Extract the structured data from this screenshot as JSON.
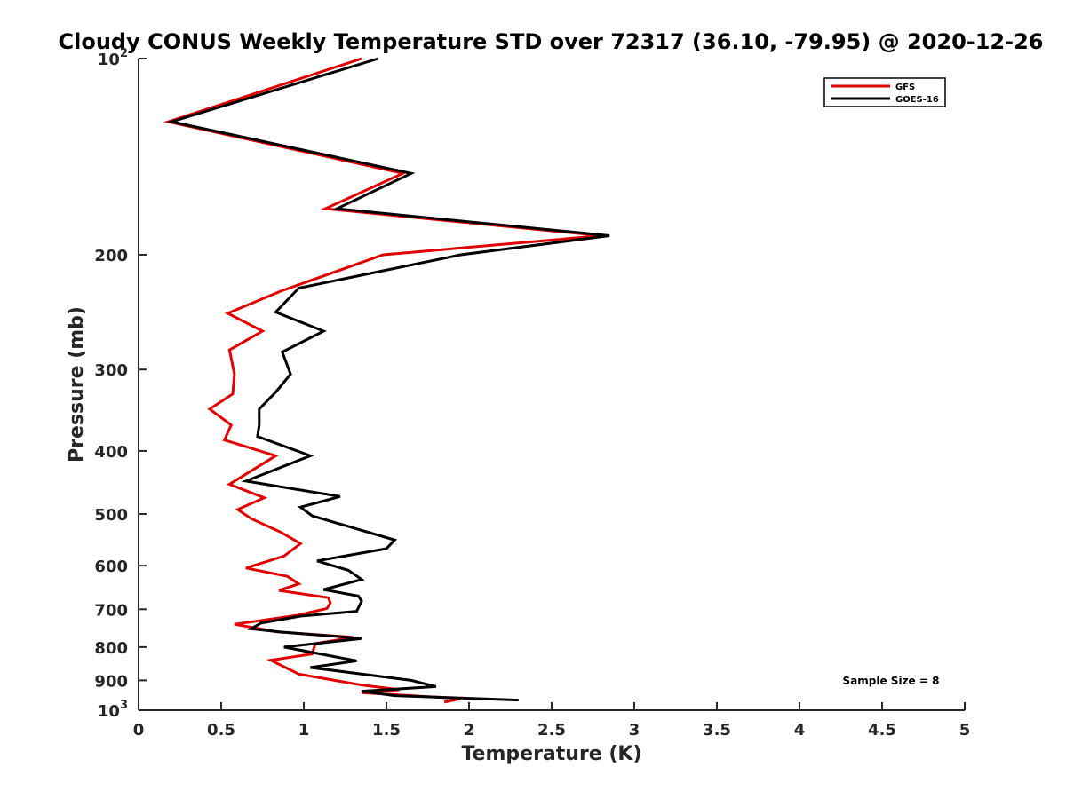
{
  "chart_data": {
    "type": "line",
    "title": "Cloudy CONUS Weekly Temperature STD over 72317 (36.10, -79.95) @ 2020-12-26",
    "xlabel": "Temperature (K)",
    "ylabel": "Pressure (mb)",
    "xlim": [
      0,
      5
    ],
    "ylim": [
      100,
      1000
    ],
    "y_scale": "log",
    "y_reversed": true,
    "grid": false,
    "legend_position": "top-right",
    "x_ticks": [
      "0",
      "0.5",
      "1",
      "1.5",
      "2",
      "2.5",
      "3",
      "3.5",
      "4",
      "4.5",
      "5"
    ],
    "x_tick_values": [
      0,
      0.5,
      1,
      1.5,
      2,
      2.5,
      3,
      3.5,
      4,
      4.5,
      5
    ],
    "y_ticks": [
      {
        "value": 100,
        "base": "10",
        "exp": "2"
      },
      {
        "value": 200,
        "label": "200"
      },
      {
        "value": 300,
        "label": "300"
      },
      {
        "value": 400,
        "label": "400"
      },
      {
        "value": 500,
        "label": "500"
      },
      {
        "value": 600,
        "label": "600"
      },
      {
        "value": 700,
        "label": "700"
      },
      {
        "value": 800,
        "label": "800"
      },
      {
        "value": 900,
        "label": "900"
      },
      {
        "value": 1000,
        "base": "10",
        "exp": "3"
      }
    ],
    "annotation": "Sample Size = 8",
    "series": [
      {
        "name": "GFS",
        "color": "#e00000",
        "points": [
          [
            1.35,
            100
          ],
          [
            0.18,
            125
          ],
          [
            1.6,
            150
          ],
          [
            1.13,
            170
          ],
          [
            2.8,
            187
          ],
          [
            1.48,
            200
          ],
          [
            0.87,
            227
          ],
          [
            0.54,
            246
          ],
          [
            0.75,
            262
          ],
          [
            0.55,
            280
          ],
          [
            0.58,
            305
          ],
          [
            0.57,
            327
          ],
          [
            0.43,
            345
          ],
          [
            0.56,
            365
          ],
          [
            0.52,
            385
          ],
          [
            0.83,
            407
          ],
          [
            0.55,
            450
          ],
          [
            0.76,
            472
          ],
          [
            0.6,
            492
          ],
          [
            0.68,
            508
          ],
          [
            0.86,
            533
          ],
          [
            0.98,
            555
          ],
          [
            0.88,
            580
          ],
          [
            0.65,
            605
          ],
          [
            0.9,
            623
          ],
          [
            0.97,
            640
          ],
          [
            0.85,
            655
          ],
          [
            1.15,
            672
          ],
          [
            1.16,
            685
          ],
          [
            1.14,
            698
          ],
          [
            0.96,
            715
          ],
          [
            0.58,
            738
          ],
          [
            0.84,
            758
          ],
          [
            1.3,
            773
          ],
          [
            1.07,
            790
          ],
          [
            1.05,
            820
          ],
          [
            0.8,
            838
          ],
          [
            0.97,
            880
          ],
          [
            1.35,
            915
          ],
          [
            1.58,
            930
          ],
          [
            1.35,
            940
          ],
          [
            1.95,
            960
          ],
          [
            1.85,
            972
          ]
        ]
      },
      {
        "name": "GOES-16",
        "color": "#000000",
        "points": [
          [
            1.45,
            100
          ],
          [
            0.2,
            125
          ],
          [
            1.65,
            150
          ],
          [
            1.2,
            170
          ],
          [
            2.85,
            187
          ],
          [
            1.95,
            200
          ],
          [
            0.97,
            225
          ],
          [
            0.83,
            245
          ],
          [
            1.12,
            262
          ],
          [
            0.87,
            282
          ],
          [
            0.92,
            305
          ],
          [
            0.83,
            325
          ],
          [
            0.73,
            345
          ],
          [
            0.73,
            365
          ],
          [
            0.72,
            380
          ],
          [
            1.04,
            407
          ],
          [
            0.65,
            445
          ],
          [
            1.22,
            470
          ],
          [
            0.98,
            488
          ],
          [
            1.05,
            503
          ],
          [
            1.55,
            548
          ],
          [
            1.5,
            565
          ],
          [
            1.08,
            590
          ],
          [
            1.27,
            610
          ],
          [
            1.35,
            630
          ],
          [
            1.12,
            653
          ],
          [
            1.33,
            668
          ],
          [
            1.35,
            680
          ],
          [
            1.32,
            705
          ],
          [
            0.98,
            717
          ],
          [
            0.74,
            735
          ],
          [
            0.68,
            750
          ],
          [
            0.85,
            758
          ],
          [
            1.35,
            776
          ],
          [
            0.88,
            800
          ],
          [
            1.32,
            840
          ],
          [
            1.04,
            860
          ],
          [
            1.65,
            900
          ],
          [
            1.8,
            920
          ],
          [
            1.35,
            935
          ],
          [
            1.55,
            950
          ],
          [
            2.3,
            965
          ]
        ]
      }
    ]
  }
}
